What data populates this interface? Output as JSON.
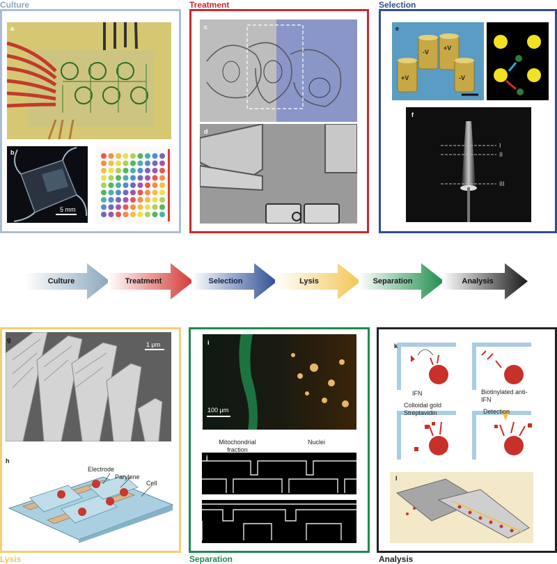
{
  "stages": {
    "culture": {
      "title": "Culture",
      "color": "#8aa7bd"
    },
    "treatment": {
      "title": "Treatment",
      "color": "#c8282e"
    },
    "selection": {
      "title": "Selection",
      "color": "#2f4e8e"
    },
    "lysis": {
      "title": "Lysis",
      "color": "#f2c45a"
    },
    "separation": {
      "title": "Separation",
      "color": "#1f8a4c"
    },
    "analysis": {
      "title": "Analysis",
      "color": "#222222"
    }
  },
  "pipeline": [
    "Culture",
    "Treatment",
    "Selection",
    "Lysis",
    "Separation",
    "Analysis"
  ],
  "panels": {
    "a": "a",
    "b": "b",
    "c": "c",
    "d": "d",
    "e": "e",
    "f": "f",
    "g": "g",
    "h": "h",
    "i": "i",
    "j": "j",
    "k": "k",
    "l": "l"
  },
  "labels": {
    "scale_5mm": "5 mm",
    "electrode_pos1": "+V",
    "electrode_pos2": "+V",
    "electrode_neg1": "-V",
    "electrode_neg2": "-V",
    "roman1": "I",
    "roman2": "II",
    "roman3": "III",
    "scale_1um": "1 μm",
    "electrode": "Electrode",
    "parylene": "Parylene",
    "cell": "Cell",
    "scale_100um": "100 μm",
    "mito": "Mitochondrial fraction",
    "nuclei": "Nuclei",
    "ifn": "IFN",
    "biotinylated": "Biotinylated anti-IFN",
    "colloidal": "Colloidal gold Streptavidin",
    "detection": "Detection"
  }
}
